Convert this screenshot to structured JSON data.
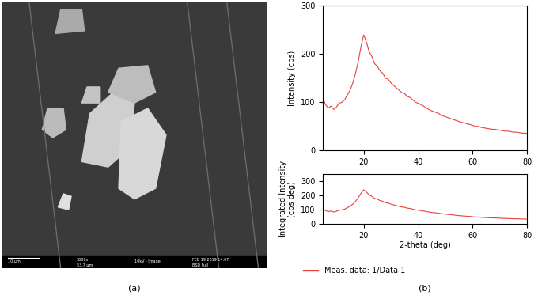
{
  "image_panel": {
    "label": "(a)",
    "kind": "SEM micrograph",
    "info_bar": [
      "10 μm",
      "5000x",
      "53.7 μm",
      "10kV - Image",
      "FEB 19 2019 14:07",
      "BSD Full"
    ]
  },
  "chart_data": [
    {
      "type": "line",
      "panel_label": "(b)",
      "y_label": "Intensity (cps)",
      "x": [
        5,
        6,
        7,
        8,
        9,
        10,
        11,
        12,
        13,
        14,
        15,
        16,
        17,
        18,
        19,
        20,
        21,
        22,
        23,
        24,
        25,
        26,
        27,
        28,
        29,
        30,
        31,
        32,
        33,
        34,
        35,
        36,
        37,
        38,
        39,
        40,
        41,
        42,
        43,
        44,
        45,
        46,
        47,
        48,
        49,
        50,
        51,
        52,
        53,
        54,
        55,
        56,
        57,
        58,
        59,
        60,
        61,
        62,
        63,
        64,
        65,
        66,
        67,
        68,
        69,
        70,
        71,
        72,
        73,
        74,
        75,
        76,
        77,
        78,
        79,
        80
      ],
      "series": [
        {
          "name": "Meas. data: 1/Data 1",
          "color": "#e8413a",
          "values": [
            110,
            95,
            88,
            92,
            85,
            90,
            98,
            100,
            105,
            115,
            125,
            140,
            160,
            185,
            215,
            240,
            225,
            205,
            195,
            180,
            175,
            165,
            160,
            150,
            148,
            140,
            135,
            130,
            125,
            120,
            118,
            112,
            110,
            105,
            100,
            98,
            95,
            92,
            88,
            85,
            82,
            80,
            78,
            75,
            72,
            70,
            68,
            66,
            64,
            62,
            60,
            58,
            57,
            55,
            54,
            52,
            50,
            50,
            48,
            47,
            46,
            45,
            44,
            44,
            43,
            42,
            41,
            40,
            40,
            39,
            38,
            38,
            37,
            36,
            36,
            35
          ]
        }
      ],
      "xlim": [
        5,
        80
      ],
      "xticks": [
        20,
        40,
        60,
        80
      ],
      "ylim": [
        0,
        300
      ],
      "yticks": [
        0,
        100,
        200,
        300
      ]
    },
    {
      "type": "line",
      "x_label": "2-theta (deg)",
      "y_label": "Integrated Intensity\n(cps deg)",
      "x": [
        5,
        6,
        7,
        8,
        9,
        10,
        11,
        12,
        13,
        14,
        15,
        16,
        17,
        18,
        19,
        20,
        21,
        22,
        23,
        24,
        25,
        26,
        27,
        28,
        29,
        30,
        31,
        32,
        33,
        34,
        35,
        36,
        37,
        38,
        39,
        40,
        41,
        42,
        43,
        44,
        45,
        46,
        47,
        48,
        49,
        50,
        51,
        52,
        53,
        54,
        55,
        56,
        57,
        58,
        59,
        60,
        61,
        62,
        63,
        64,
        65,
        66,
        67,
        68,
        69,
        70,
        71,
        72,
        73,
        74,
        75,
        76,
        77,
        78,
        79,
        80
      ],
      "series": [
        {
          "name": "Meas. data: 1/Data 1",
          "color": "#e8413a",
          "values": [
            110,
            95,
            88,
            92,
            85,
            90,
            98,
            100,
            105,
            115,
            125,
            140,
            160,
            185,
            215,
            240,
            225,
            205,
            195,
            180,
            175,
            165,
            160,
            150,
            148,
            140,
            135,
            130,
            125,
            120,
            118,
            112,
            110,
            105,
            100,
            98,
            95,
            92,
            88,
            85,
            82,
            80,
            78,
            75,
            72,
            70,
            68,
            66,
            64,
            62,
            60,
            58,
            57,
            55,
            54,
            52,
            50,
            50,
            48,
            47,
            46,
            45,
            44,
            44,
            43,
            42,
            41,
            40,
            40,
            39,
            38,
            38,
            37,
            36,
            36,
            35
          ]
        }
      ],
      "xlim": [
        5,
        80
      ],
      "xticks": [
        20,
        40,
        60,
        80
      ],
      "ylim": [
        0,
        350
      ],
      "yticks": [
        0,
        100,
        200,
        300
      ],
      "legend": "lower left"
    }
  ]
}
